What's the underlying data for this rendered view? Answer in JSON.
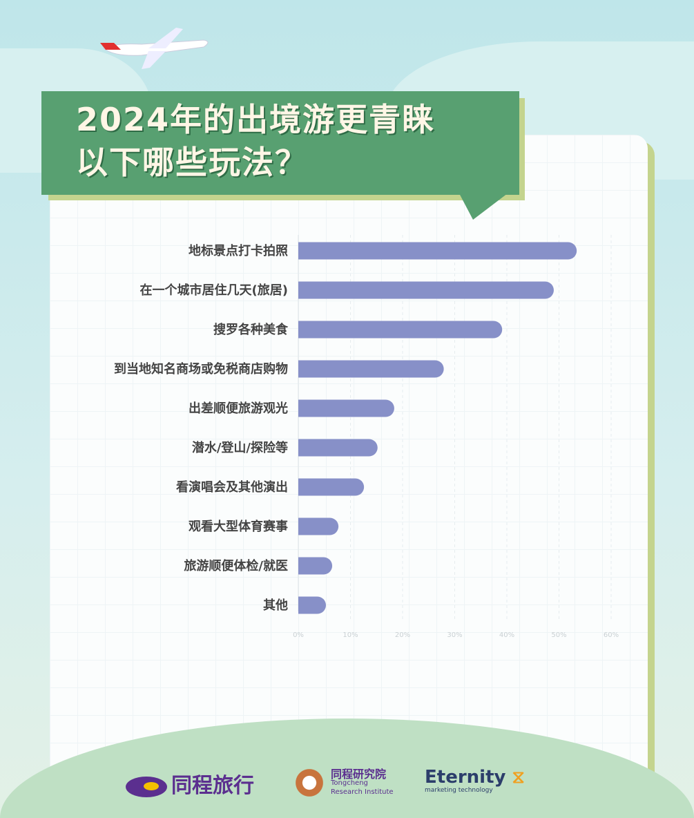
{
  "title_lines": [
    "2024年的出境游更青睐",
    "以下哪些玩法？"
  ],
  "chart_data": {
    "type": "bar",
    "orientation": "horizontal",
    "title": "2024年的出境游更青睐以下哪些玩法？",
    "categories": [
      "地标景点打卡拍照",
      "在一个城市居住几天(旅居)",
      "搜罗各种美食",
      "到当地知名商场或免税商店购物",
      "出差顺便旅游观光",
      "潜水/登山/探险等",
      "看演唱会及其他演出",
      "观看大型体育赛事",
      "旅游顺便体检/就医",
      "其他"
    ],
    "values": [
      53.4,
      49.0,
      39.1,
      27.9,
      18.4,
      15.2,
      12.6,
      7.7,
      6.5,
      5.3
    ],
    "unit": "%",
    "xlim": [
      0,
      60
    ],
    "xticks": [
      "0%",
      "10%",
      "20%",
      "30%",
      "40%",
      "50%",
      "60%"
    ],
    "grid": true,
    "bar_color": "#8790c8"
  },
  "logos": {
    "tongcheng": "同程旅行",
    "institute_cn": "同程研究院",
    "institute_en_1": "Tongcheng",
    "institute_en_2": "Research Institute",
    "eternity": "Eternity",
    "eternity_sub": "marketing technology"
  },
  "colors": {
    "banner": "#58a071",
    "title_text": "#fff6e6",
    "accent": "#c4d48e"
  }
}
